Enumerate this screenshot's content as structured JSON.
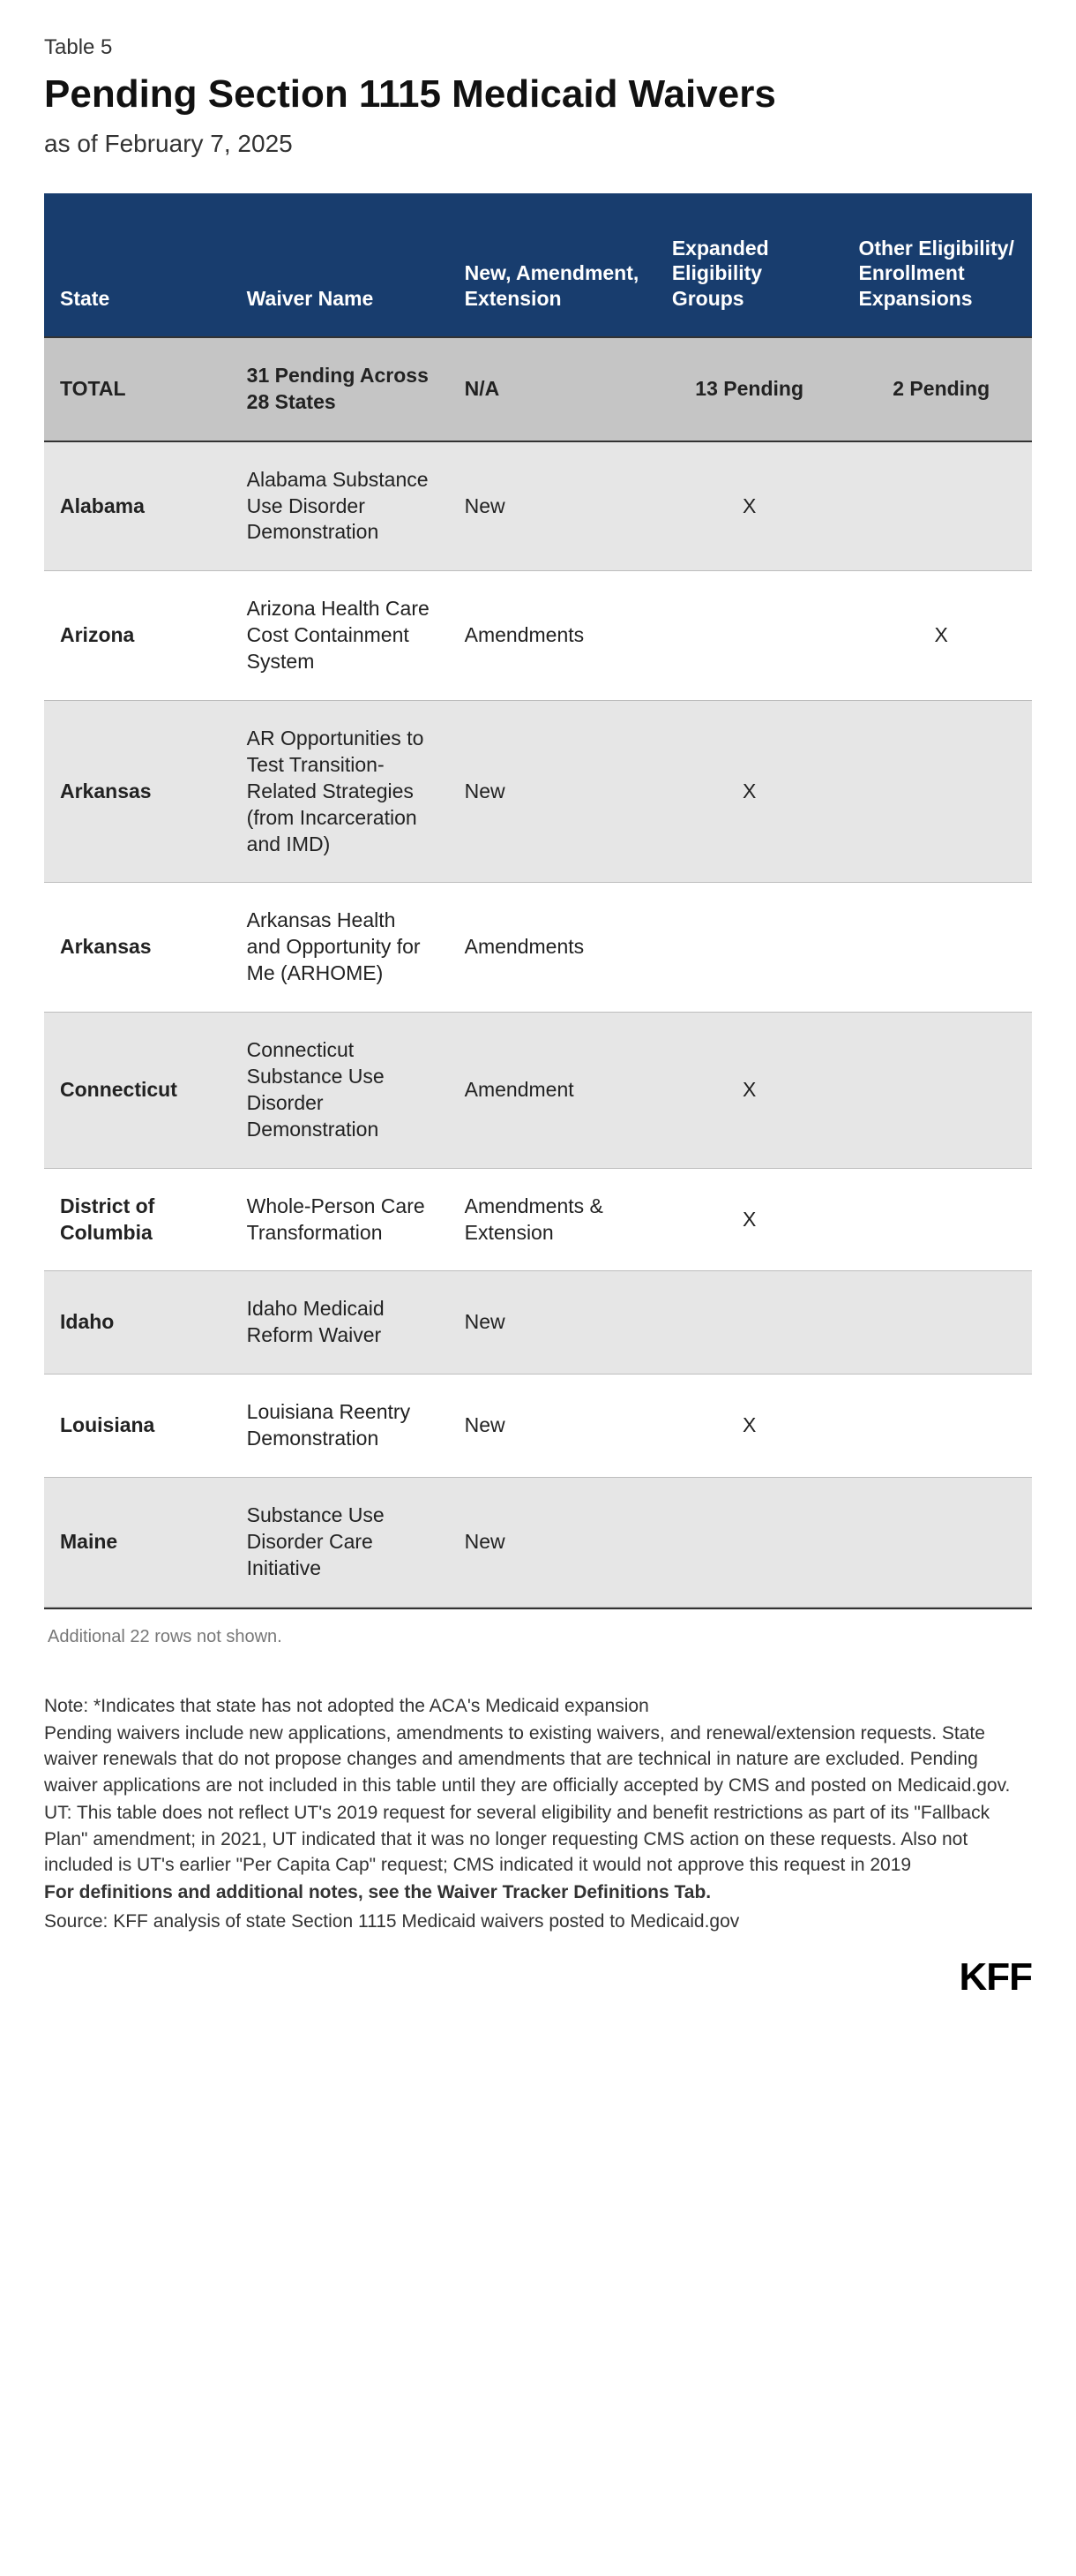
{
  "table_label": "Table 5",
  "title": "Pending Section 1115 Medicaid Waivers",
  "subtitle": "as of February 7, 2025",
  "columns": [
    "State",
    "Waiver Name",
    "New, Amendment, Extension",
    "Expanded Eligibility Groups",
    "Other Eligibility/ Enrollment Expansions"
  ],
  "total_row": {
    "state": "TOTAL",
    "waiver": "31 Pending Across 28 States",
    "type": "N/A",
    "expanded": "13 Pending",
    "other": "2 Pending"
  },
  "rows": [
    {
      "state": "Alabama",
      "waiver": "Alabama Substance Use Disorder Demonstration",
      "type": "New",
      "expanded": "X",
      "other": ""
    },
    {
      "state": "Arizona",
      "waiver": "Arizona Health Care Cost Containment System",
      "type": "Amendments",
      "expanded": "",
      "other": "X"
    },
    {
      "state": "Arkansas",
      "waiver": "AR Opportunities to Test Transition-Related Strategies (from Incarceration and IMD)",
      "type": "New",
      "expanded": "X",
      "other": ""
    },
    {
      "state": "Arkansas",
      "waiver": "Arkansas Health and Opportunity for Me (ARHOME)",
      "type": "Amendments",
      "expanded": "",
      "other": ""
    },
    {
      "state": "Connecticut",
      "waiver": "Connecticut Substance Use Disorder Demonstration",
      "type": "Amendment",
      "expanded": "X",
      "other": ""
    },
    {
      "state": "District of Columbia",
      "waiver": "Whole-Person Care Transformation",
      "type": "Amendments & Extension",
      "expanded": "X",
      "other": ""
    },
    {
      "state": "Idaho",
      "waiver": "Idaho Medicaid Reform Waiver",
      "type": "New",
      "expanded": "",
      "other": ""
    },
    {
      "state": "Louisiana",
      "waiver": "Louisiana Reentry Demonstration",
      "type": "New",
      "expanded": "X",
      "other": ""
    },
    {
      "state": "Maine",
      "waiver": "Substance Use Disorder Care Initiative",
      "type": "New",
      "expanded": "",
      "other": ""
    }
  ],
  "more_rows_text": "Additional 22 rows not shown.",
  "notes": [
    "Note: *Indicates that state has not adopted the ACA's Medicaid expansion",
    "Pending waivers include new applications, amendments to existing waivers, and renewal/extension requests. State waiver renewals that do not propose changes and amendments that are technical in nature are excluded. Pending waiver applications are not included in this table until they are officially accepted by CMS and posted on Medicaid.gov.",
    "UT: This table does not reflect UT's 2019 request for several eligibility and benefit restrictions as part of its \"Fallback Plan\" amendment; in 2021, UT indicated that it was no longer requesting CMS action on these requests. Also not included is UT's earlier \"Per Capita Cap\" request; CMS indicated it would not approve this request in 2019"
  ],
  "notes_bold": "For definitions and additional notes, see the Waiver Tracker Definitions Tab.",
  "source": "Source: KFF analysis of state Section 1115 Medicaid waivers posted to Medicaid.gov",
  "logo": "KFF",
  "colors": {
    "header_bg": "#183d6e",
    "header_fg": "#ffffff",
    "total_bg": "#c5c5c5",
    "row_odd_bg": "#e6e6e6",
    "row_even_bg": "#ffffff",
    "border": "#333333"
  }
}
